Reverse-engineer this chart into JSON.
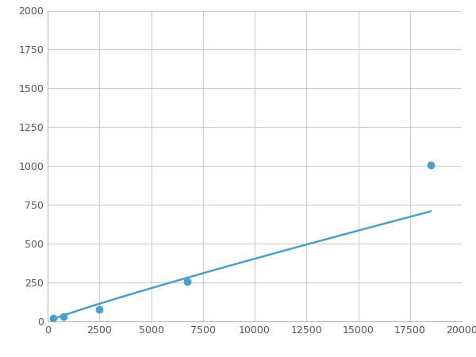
{
  "x": [
    250,
    750,
    2500,
    6750,
    18500
  ],
  "y": [
    20,
    30,
    75,
    255,
    1005
  ],
  "line_color": "#4d9ec9",
  "marker_color": "#4d9ec9",
  "marker_size": 6,
  "line_width": 1.8,
  "xlim": [
    0,
    20000
  ],
  "ylim": [
    0,
    2000
  ],
  "xticks": [
    0,
    2500,
    5000,
    7500,
    10000,
    12500,
    15000,
    17500,
    20000
  ],
  "yticks": [
    0,
    250,
    500,
    750,
    1000,
    1250,
    1500,
    1750,
    2000
  ],
  "grid_color": "#cccccc",
  "bg_color": "#ffffff",
  "fig_bg_color": "#ffffff"
}
